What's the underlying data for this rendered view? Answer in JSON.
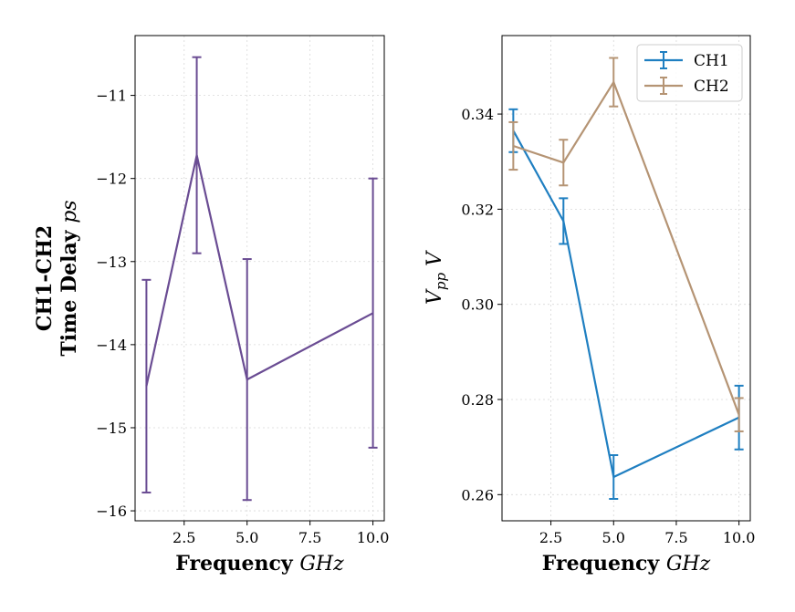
{
  "chart_data": [
    {
      "type": "line",
      "error_bars": true,
      "xlabel": "Frequency",
      "xlabel_unit": "GHz",
      "ylabel_line1": "CH1-CH2",
      "ylabel_line2": "Time Delay",
      "ylabel_unit": "ps",
      "xlim": [
        0.55,
        10.45
      ],
      "ylim": [
        -16.12,
        -10.28
      ],
      "xticks": [
        2.5,
        5.0,
        7.5,
        10.0
      ],
      "xtick_labels": [
        "2.5",
        "5.0",
        "7.5",
        "10.0"
      ],
      "yticks": [
        -16,
        -15,
        -14,
        -13,
        -12,
        -11
      ],
      "ytick_labels": [
        "−16",
        "−15",
        "−14",
        "−13",
        "−12",
        "−11"
      ],
      "grid": true,
      "series": [
        {
          "color": "#6a4c93",
          "x": [
            1,
            3,
            5,
            10
          ],
          "y": [
            -14.5,
            -11.72,
            -14.42,
            -13.62
          ],
          "err": [
            1.28,
            1.18,
            1.45,
            1.62
          ]
        }
      ]
    },
    {
      "type": "line",
      "error_bars": true,
      "xlabel": "Frequency",
      "xlabel_unit": "GHz",
      "ylabel_main": "V",
      "ylabel_sub": "pp",
      "ylabel_unit": "V",
      "xlim": [
        0.55,
        10.45
      ],
      "ylim": [
        0.2545,
        0.3565
      ],
      "xticks": [
        2.5,
        5.0,
        7.5,
        10.0
      ],
      "xtick_labels": [
        "2.5",
        "5.0",
        "7.5",
        "10.0"
      ],
      "yticks": [
        0.26,
        0.28,
        0.3,
        0.32,
        0.34
      ],
      "ytick_labels": [
        "0.26",
        "0.28",
        "0.30",
        "0.32",
        "0.34"
      ],
      "grid": true,
      "legend_position": "top-right",
      "series": [
        {
          "name": "CH1",
          "color": "#1f7fc1",
          "x": [
            1,
            3,
            5,
            10
          ],
          "y": [
            0.3365,
            0.3175,
            0.2637,
            0.2762
          ],
          "err": [
            0.0045,
            0.0048,
            0.0046,
            0.0067
          ]
        },
        {
          "name": "CH2",
          "color": "#b59474",
          "x": [
            1,
            3,
            5,
            10
          ],
          "y": [
            0.3333,
            0.3298,
            0.3467,
            0.2768
          ],
          "err": [
            0.005,
            0.0048,
            0.0051,
            0.0035
          ]
        }
      ]
    }
  ]
}
